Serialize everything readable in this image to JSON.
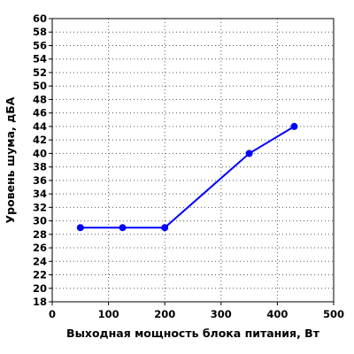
{
  "chart_data": {
    "type": "line",
    "xlabel": "Выходная мощность блока питания, Вт",
    "ylabel": "Уровень шума, дБА",
    "xlim": [
      0,
      500
    ],
    "ylim": [
      18,
      60
    ],
    "x_ticks": [
      "0",
      "100",
      "200",
      "300",
      "400",
      "500"
    ],
    "y_ticks": [
      "18",
      "20",
      "22",
      "24",
      "26",
      "28",
      "30",
      "32",
      "34",
      "36",
      "38",
      "40",
      "42",
      "44",
      "46",
      "48",
      "50",
      "52",
      "54",
      "56",
      "58",
      "60"
    ],
    "grid": true,
    "series": [
      {
        "color": "#0000ff",
        "x": [
          50,
          125,
          200,
          350,
          430
        ],
        "y": [
          29,
          29,
          29,
          40,
          44
        ]
      }
    ]
  }
}
